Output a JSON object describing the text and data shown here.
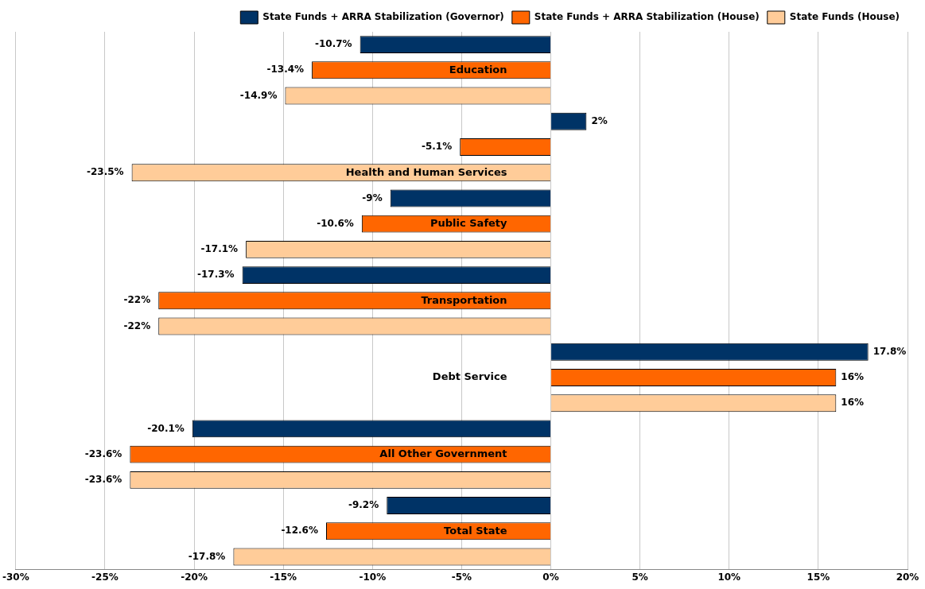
{
  "chart_data": {
    "type": "bar",
    "orientation": "horizontal",
    "categories": [
      "Education",
      "Health and Human Services",
      "Public Safety",
      "Transportation",
      "Debt Service",
      "All Other Government",
      "Total State"
    ],
    "series": [
      {
        "name": "State Funds + ARRA Stabilization (Governor)",
        "color": "#003366",
        "values": [
          -10.7,
          2,
          -9,
          -17.3,
          17.8,
          -20.1,
          -9.2
        ],
        "value_labels": [
          "-10.7%",
          "2%",
          "-9%",
          "-17.3%",
          "17.8%",
          "-20.1%",
          "-9.2%"
        ]
      },
      {
        "name": "State Funds + ARRA Stabilization (House)",
        "color": "#ff6600",
        "values": [
          -13.4,
          -5.1,
          -10.6,
          -22,
          16,
          -23.6,
          -12.6
        ],
        "value_labels": [
          "-13.4%",
          "-5.1%",
          "-10.6%",
          "-22%",
          "16%",
          "-23.6%",
          "-12.6%"
        ]
      },
      {
        "name": "State Funds (House)",
        "color": "#ffcc99",
        "values": [
          -14.9,
          -23.5,
          -17.1,
          -22,
          16,
          -23.6,
          -17.8
        ],
        "value_labels": [
          "-14.9%",
          "-23.5%",
          "-17.1%",
          "-22%",
          "16%",
          "-23.6%",
          "-17.8%"
        ]
      }
    ],
    "xlim": [
      -30,
      20
    ],
    "xticks": [
      {
        "value": -30,
        "label": "-30%"
      },
      {
        "value": -25,
        "label": "-25%"
      },
      {
        "value": -20,
        "label": "-20%"
      },
      {
        "value": -15,
        "label": "-15%"
      },
      {
        "value": -10,
        "label": "-10%"
      },
      {
        "value": -5,
        "label": "-5%"
      },
      {
        "value": 0,
        "label": "0%"
      },
      {
        "value": 5,
        "label": "5%"
      },
      {
        "value": 10,
        "label": "10%"
      },
      {
        "value": 15,
        "label": "15%"
      },
      {
        "value": 20,
        "label": "20%"
      }
    ],
    "grid": "x",
    "legend": "top right"
  }
}
